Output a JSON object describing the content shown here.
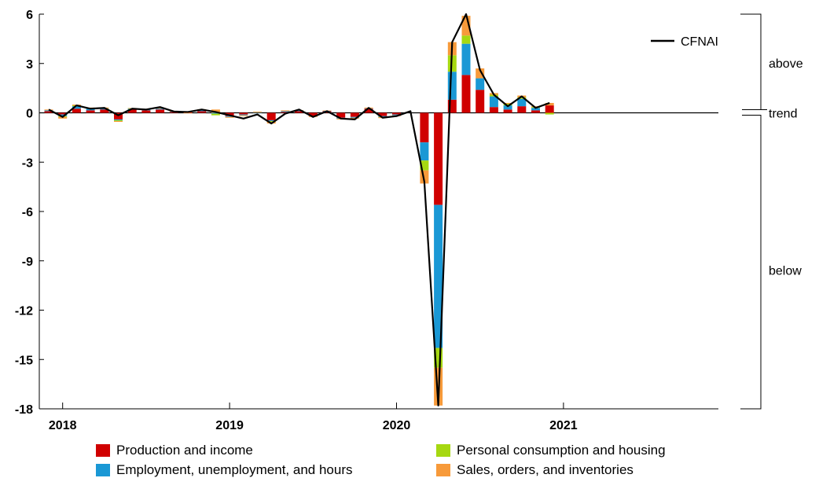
{
  "colors": {
    "production": "#d00000",
    "employment": "#1a98d5",
    "personal": "#a6d811",
    "sales": "#f79a3a",
    "cfnai": "#000000",
    "axis": "#000000"
  },
  "chart_data": {
    "type": "bar",
    "stacked": true,
    "xlabel": "",
    "ylabel": "",
    "ylim": [
      -18,
      6
    ],
    "yticks": [
      6,
      3,
      0,
      -3,
      -6,
      -9,
      -12,
      -15,
      -18
    ],
    "ytick_labels": [
      "6",
      "3",
      "0",
      "-3",
      "-6",
      "-9",
      "-12",
      "-15",
      "-18"
    ],
    "x_tick_labels": [
      "2018",
      "2019",
      "2020",
      "2021"
    ],
    "months": [
      "2017-12",
      "2018-01",
      "2018-02",
      "2018-03",
      "2018-04",
      "2018-05",
      "2018-06",
      "2018-07",
      "2018-08",
      "2018-09",
      "2018-10",
      "2018-11",
      "2018-12",
      "2019-01",
      "2019-02",
      "2019-03",
      "2019-04",
      "2019-05",
      "2019-06",
      "2019-07",
      "2019-08",
      "2019-09",
      "2019-10",
      "2019-11",
      "2019-12",
      "2020-01",
      "2020-02",
      "2020-03",
      "2020-04",
      "2020-05",
      "2020-06",
      "2020-07",
      "2020-08",
      "2020-09",
      "2020-10",
      "2020-11",
      "2020-12"
    ],
    "series": [
      {
        "name": "Production and income",
        "values": [
          0.1,
          -0.1,
          0.25,
          0.15,
          0.2,
          -0.4,
          0.2,
          0.15,
          0.2,
          0.05,
          0.05,
          0.1,
          0.0,
          -0.2,
          -0.1,
          0.0,
          -0.45,
          0.05,
          0.1,
          -0.2,
          0.1,
          -0.3,
          -0.25,
          0.25,
          -0.2,
          -0.1,
          0.0,
          -1.8,
          -5.6,
          0.8,
          2.3,
          1.4,
          0.35,
          0.2,
          0.4,
          0.15,
          0.45
        ]
      },
      {
        "name": "Employment, unemployment, and hours",
        "values": [
          0.05,
          -0.1,
          0.15,
          0.1,
          0.05,
          -0.05,
          0.05,
          0.05,
          0.05,
          0.02,
          0.0,
          0.05,
          -0.05,
          -0.05,
          -0.05,
          0.02,
          -0.05,
          0.05,
          0.05,
          0.0,
          0.02,
          -0.05,
          -0.05,
          0.02,
          -0.05,
          -0.05,
          0.0,
          -1.1,
          -8.7,
          1.7,
          1.9,
          0.7,
          0.65,
          0.25,
          0.45,
          0.15,
          0.0
        ]
      },
      {
        "name": "Personal consumption and housing",
        "values": [
          0.0,
          -0.05,
          0.05,
          0.02,
          0.02,
          -0.05,
          0.02,
          0.02,
          0.0,
          0.0,
          0.0,
          0.02,
          -0.1,
          0.0,
          0.0,
          0.0,
          -0.05,
          0.0,
          0.0,
          0.0,
          0.0,
          0.0,
          0.0,
          0.0,
          -0.02,
          0.0,
          0.0,
          -0.6,
          -1.2,
          1.0,
          0.5,
          0.0,
          0.1,
          0.1,
          0.1,
          0.05,
          -0.1
        ]
      },
      {
        "name": "Sales, orders, and inventories",
        "values": [
          0.05,
          -0.1,
          0.05,
          0.05,
          0.05,
          -0.05,
          0.02,
          0.02,
          0.05,
          0.03,
          -0.03,
          0.05,
          0.2,
          -0.05,
          -0.05,
          0.05,
          -0.1,
          0.05,
          0.02,
          -0.05,
          0.02,
          -0.05,
          -0.05,
          0.05,
          -0.05,
          -0.05,
          0.0,
          -0.8,
          -2.3,
          0.8,
          1.2,
          0.6,
          0.1,
          0.05,
          0.1,
          0.05,
          0.15
        ]
      }
    ],
    "line": {
      "name": "CFNAI",
      "values": [
        0.2,
        -0.25,
        0.45,
        0.25,
        0.3,
        -0.15,
        0.25,
        0.2,
        0.35,
        0.08,
        0.05,
        0.2,
        0.05,
        -0.15,
        -0.35,
        -0.1,
        -0.65,
        -0.05,
        0.2,
        -0.25,
        0.1,
        -0.35,
        -0.4,
        0.3,
        -0.3,
        -0.2,
        0.1,
        -4.2,
        -17.8,
        4.3,
        6.0,
        2.6,
        1.1,
        0.4,
        1.0,
        0.3,
        0.6
      ]
    },
    "bracket_labels": [
      "above",
      "trend",
      "below"
    ],
    "legend": {
      "line_label": "CFNAI",
      "items": [
        "Production and income",
        "Employment, unemployment, and hours",
        "Personal consumption and housing",
        "Sales, orders, and inventories"
      ]
    }
  }
}
